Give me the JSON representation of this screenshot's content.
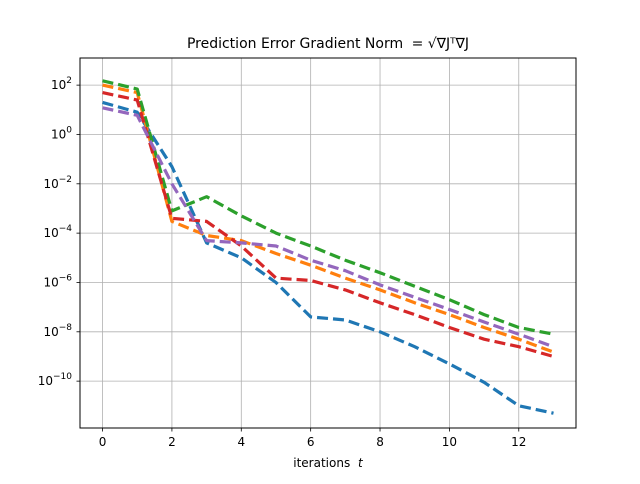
{
  "chart_data": {
    "type": "line",
    "title_prefix": "Prediction Error Gradient Norm",
    "title_formula": "= √∇Jᵀ∇J",
    "xlabel_prefix": "iterations",
    "xlabel_var": "t",
    "ylabel": "",
    "xlim": [
      -0.65,
      13.65
    ],
    "ylim_log10": [
      -11.9,
      3.1
    ],
    "y_scale": "log",
    "grid": true,
    "legend": "none",
    "x_ticks": [
      0,
      2,
      4,
      6,
      8,
      10,
      12
    ],
    "x_tick_labels": [
      "0",
      "2",
      "4",
      "6",
      "8",
      "10",
      "12"
    ],
    "y_ticks_log10": [
      2,
      0,
      -2,
      -4,
      -6,
      -8,
      -10
    ],
    "y_tick_labels": [
      {
        "base": "10",
        "exp": "2"
      },
      {
        "base": "10",
        "exp": "0"
      },
      {
        "base": "10",
        "exp": "−2"
      },
      {
        "base": "10",
        "exp": "−4"
      },
      {
        "base": "10",
        "exp": "−6"
      },
      {
        "base": "10",
        "exp": "−8"
      },
      {
        "base": "10",
        "exp": "−10"
      }
    ],
    "x": [
      0,
      1,
      2,
      3,
      4,
      5,
      6,
      7,
      8,
      9,
      10,
      11,
      12,
      13
    ],
    "series": [
      {
        "color": "#1f77b4",
        "values": [
          20,
          8,
          0.05,
          4e-05,
          1e-05,
          1e-06,
          4e-08,
          3e-08,
          1e-08,
          2.5e-09,
          5e-10,
          9e-11,
          1e-11,
          5e-12
        ]
      },
      {
        "color": "#ff7f0e",
        "values": [
          100,
          50,
          0.0003,
          8e-05,
          5e-05,
          1.5e-05,
          5e-06,
          1.5e-06,
          5e-07,
          1.5e-07,
          5e-08,
          1.5e-08,
          5e-09,
          1.5e-09
        ]
      },
      {
        "color": "#2ca02c",
        "values": [
          150,
          70,
          0.0008,
          0.003,
          0.0005,
          0.0001,
          3e-05,
          8e-06,
          2.5e-06,
          7e-07,
          2e-07,
          5e-08,
          1.5e-08,
          8e-09
        ]
      },
      {
        "color": "#d62728",
        "values": [
          50,
          25,
          0.0004,
          0.0003,
          3e-05,
          1.5e-06,
          1.2e-06,
          5e-07,
          1.5e-07,
          5e-08,
          1.5e-08,
          5e-09,
          2.5e-09,
          1e-09
        ]
      },
      {
        "color": "#9467bd",
        "values": [
          12,
          6,
          0.01,
          5e-05,
          4e-05,
          3e-05,
          8e-06,
          3e-06,
          8e-07,
          2.5e-07,
          8e-08,
          2.5e-08,
          8e-09,
          2.5e-09
        ]
      }
    ]
  }
}
